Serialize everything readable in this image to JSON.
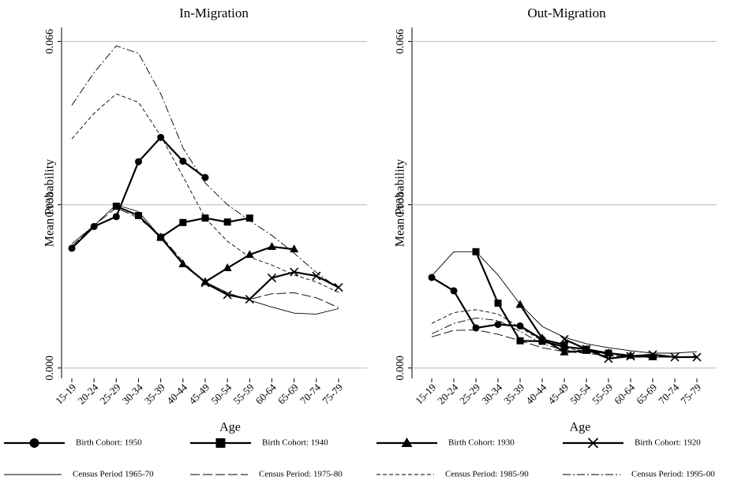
{
  "chart_data": [
    {
      "type": "line",
      "title": "In-Migration",
      "ylabel": "Mean Probability",
      "xlabel": "Age",
      "categories": [
        "15-19",
        "20-24",
        "25-29",
        "30-34",
        "35-39",
        "40-44",
        "45-49",
        "50-54",
        "55-59",
        "60-64",
        "65-69",
        "70-74",
        "75-79"
      ],
      "ylim": [
        -0.0021,
        0.0688
      ],
      "yticks": [
        {
          "value": 0,
          "label": "0.000"
        },
        0.033,
        0.066
      ],
      "grid": true,
      "series": [
        {
          "color": "#000000",
          "marker": "circle",
          "linestyle": "solid",
          "linewidth": 2.2,
          "values": [
            0.0242,
            0.0286,
            0.0306,
            0.0417,
            0.0466,
            0.0418,
            0.0385,
            null,
            null,
            null,
            null,
            null,
            null
          ]
        },
        {
          "color": "#000000",
          "marker": "square",
          "linestyle": "solid",
          "linewidth": 2.2,
          "values": [
            null,
            null,
            0.0327,
            0.0308,
            0.0264,
            0.0294,
            0.0303,
            0.0295,
            0.0303,
            null,
            null,
            null,
            null
          ]
        },
        {
          "color": "#000000",
          "marker": "triangle",
          "linestyle": "solid",
          "linewidth": 2.2,
          "values": [
            null,
            null,
            null,
            null,
            0.0264,
            0.021,
            0.0174,
            0.0202,
            0.0229,
            0.0245,
            0.024,
            null,
            null
          ]
        },
        {
          "color": "#000000",
          "marker": "x",
          "linestyle": "solid",
          "linewidth": 2.2,
          "values": [
            null,
            null,
            null,
            null,
            null,
            null,
            0.0172,
            0.0148,
            0.0139,
            0.0182,
            0.0194,
            0.0186,
            0.0163
          ]
        },
        {
          "color": "#000000",
          "linestyle": "solid",
          "linewidth": 0.9,
          "values": [
            0.0251,
            0.0288,
            0.033,
            0.0316,
            0.0264,
            0.021,
            0.0174,
            0.0152,
            0.0137,
            0.0123,
            0.0111,
            0.0109,
            0.012
          ]
        },
        {
          "color": "#000000",
          "linestyle": "longdash",
          "linewidth": 0.9,
          "values": [
            0.0246,
            0.0288,
            0.0324,
            0.0303,
            0.0267,
            0.0215,
            0.0171,
            0.0147,
            0.0139,
            0.015,
            0.0152,
            0.0142,
            0.0122
          ]
        },
        {
          "color": "#000000",
          "linestyle": "dash",
          "linewidth": 0.9,
          "values": [
            0.0463,
            0.0515,
            0.0554,
            0.0537,
            0.0469,
            0.0387,
            0.0303,
            0.0256,
            0.0224,
            0.0208,
            0.0188,
            0.0174,
            0.0153
          ]
        },
        {
          "color": "#000000",
          "linestyle": "dashdot",
          "linewidth": 0.9,
          "values": [
            0.0531,
            0.0597,
            0.0651,
            0.0636,
            0.0554,
            0.0445,
            0.0374,
            0.033,
            0.0298,
            0.0268,
            0.0232,
            0.0193,
            0.0161
          ]
        }
      ]
    },
    {
      "type": "line",
      "title": "Out-Migration",
      "ylabel": "Mean Probability",
      "xlabel": "Age",
      "categories": [
        "15-19",
        "20-24",
        "25-29",
        "30-34",
        "35-39",
        "40-44",
        "45-49",
        "50-54",
        "55-59",
        "60-64",
        "65-69",
        "70-74",
        "75-79"
      ],
      "ylim": [
        -0.0021,
        0.0688
      ],
      "yticks": [
        {
          "value": 0,
          "label": "0.000"
        },
        0.033,
        0.066
      ],
      "grid": true,
      "series": [
        {
          "color": "#000000",
          "marker": "circle",
          "linestyle": "solid",
          "linewidth": 2.2,
          "values": [
            0.0183,
            0.0156,
            0.0081,
            0.0088,
            0.0085,
            0.0058,
            0.0047,
            null,
            null,
            null,
            null,
            null,
            null
          ]
        },
        {
          "color": "#000000",
          "marker": "square",
          "linestyle": "solid",
          "linewidth": 2.2,
          "values": [
            null,
            null,
            0.0235,
            0.0131,
            0.0055,
            0.0054,
            0.0043,
            0.0038,
            0.003,
            null,
            null,
            null,
            null
          ]
        },
        {
          "color": "#000000",
          "marker": "triangle",
          "linestyle": "solid",
          "linewidth": 2.2,
          "values": [
            null,
            null,
            null,
            null,
            0.0128,
            0.006,
            0.0032,
            0.0035,
            0.003,
            0.0025,
            0.0022,
            null,
            null
          ]
        },
        {
          "color": "#000000",
          "marker": "x",
          "linestyle": "solid",
          "linewidth": 2.2,
          "values": [
            null,
            null,
            null,
            null,
            null,
            null,
            0.0058,
            0.0038,
            0.0019,
            0.0024,
            0.0027,
            0.0022,
            0.0022
          ]
        },
        {
          "color": "#000000",
          "linestyle": "solid",
          "linewidth": 0.9,
          "values": [
            0.0186,
            0.0235,
            0.0235,
            0.0188,
            0.0129,
            0.0084,
            0.0062,
            0.0049,
            0.0041,
            0.0035,
            0.003,
            0.003,
            0.0033
          ]
        },
        {
          "color": "#000000",
          "linestyle": "longdash",
          "linewidth": 0.9,
          "values": [
            0.0063,
            0.0076,
            0.0077,
            0.0068,
            0.0055,
            0.0041,
            0.0033,
            0.003,
            0.0025,
            0.0024,
            0.0022,
            0.0022,
            0.0024
          ]
        },
        {
          "color": "#000000",
          "linestyle": "dash",
          "linewidth": 0.9,
          "values": [
            0.009,
            0.0112,
            0.0118,
            0.0109,
            0.0082,
            0.0055,
            0.0041,
            0.0033,
            0.0028,
            0.0025,
            0.0024,
            0.0022,
            0.0022
          ]
        },
        {
          "color": "#000000",
          "linestyle": "dashdot",
          "linewidth": 0.9,
          "values": [
            0.0069,
            0.009,
            0.0101,
            0.0096,
            0.0074,
            0.0049,
            0.0036,
            0.003,
            0.0025,
            0.0022,
            0.0022,
            0.0022,
            0.0022
          ]
        }
      ]
    }
  ],
  "legend": [
    "Birth Cohort: 1950",
    "Birth Cohort: 1940",
    "Birth Cohort: 1930",
    "Birth Cohort: 1920",
    "Census Period 1965-70",
    "Census Period: 1975-80",
    "Census Period: 1985-90",
    "Census Period: 1995-00"
  ]
}
